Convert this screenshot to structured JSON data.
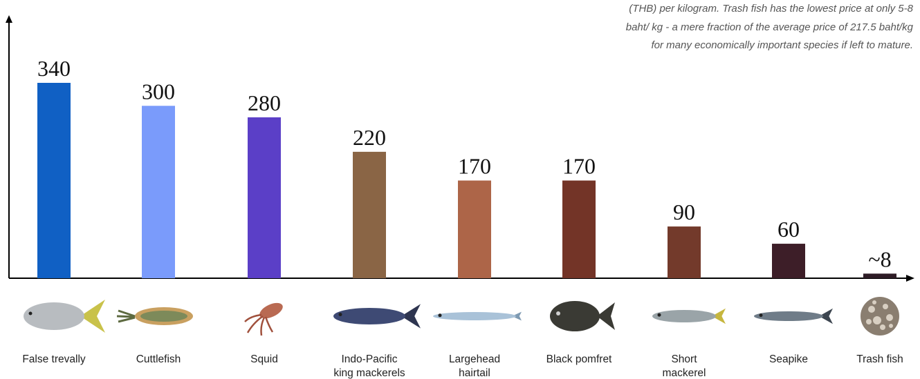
{
  "note": {
    "line1": "(THB) per kilogram. Trash fish has the lowest price at only 5-8",
    "line2": "baht/ kg - a mere fraction of the average price of 217.5 baht/kg",
    "line3": "for many economically important species if left to mature."
  },
  "chart_data": {
    "type": "bar",
    "categories": [
      "False trevally",
      "Cuttlefish",
      "Squid",
      "Indo-Pacific king mackerels",
      "Largehead hairtail",
      "Black pomfret",
      "Short mackerel",
      "Seapike",
      "Trash fish"
    ],
    "values": [
      340,
      300,
      280,
      220,
      170,
      170,
      90,
      60,
      8
    ],
    "data_labels": [
      "340",
      "300",
      "280",
      "220",
      "170",
      "170",
      "90",
      "60",
      "~8"
    ],
    "category_label_lines": [
      [
        "False trevally"
      ],
      [
        "Cuttlefish"
      ],
      [
        "Squid"
      ],
      [
        "Indo-Pacific",
        "king mackerels"
      ],
      [
        "Largehead",
        "hairtail"
      ],
      [
        "Black pomfret"
      ],
      [
        "Short",
        "mackerel"
      ],
      [
        "Seapike"
      ],
      [
        "Trash fish"
      ]
    ],
    "icons": [
      "false-trevally-fish-icon",
      "cuttlefish-icon",
      "squid-icon",
      "king-mackerel-fish-icon",
      "hairtail-fish-icon",
      "black-pomfret-fish-icon",
      "short-mackerel-fish-icon",
      "seapike-fish-icon",
      "trash-fish-pile-icon"
    ],
    "colors": [
      "#1060c4",
      "#7a9bfb",
      "#5b3fc7",
      "#8a6545",
      "#ad6548",
      "#733427",
      "#733a2b",
      "#3d1e28",
      "#2e1c26"
    ],
    "ylim": [
      0,
      340
    ],
    "title": "",
    "xlabel": "",
    "ylabel": "",
    "grid": false,
    "legend": "none"
  }
}
